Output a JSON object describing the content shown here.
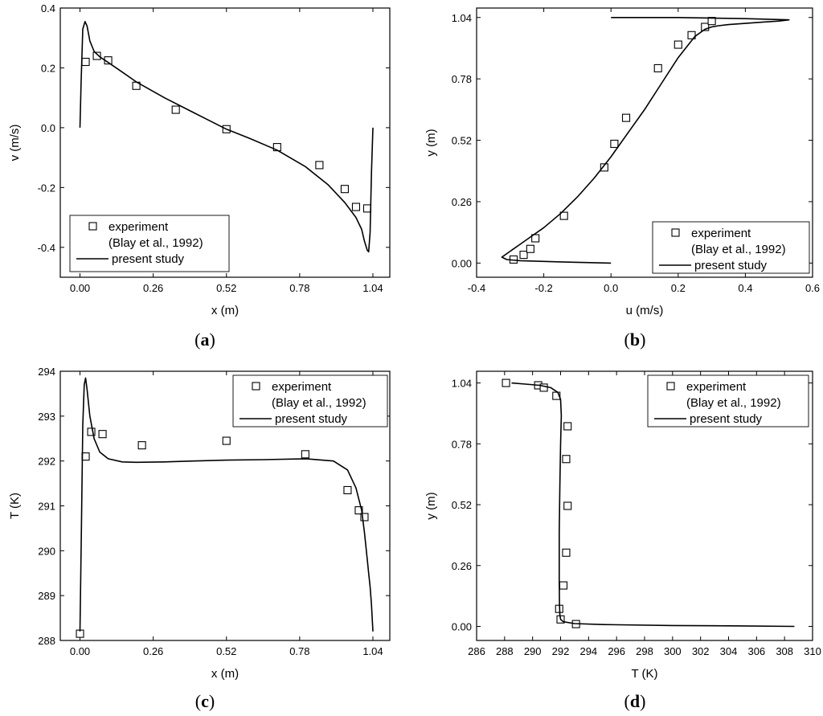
{
  "chart_data": [
    {
      "panel": "a",
      "type": "line",
      "xlabel": "x (m)",
      "ylabel": "v (m/s)",
      "xlim": [
        -0.07,
        1.1
      ],
      "ylim": [
        -0.5,
        0.4
      ],
      "xticks": [
        0.0,
        0.26,
        0.52,
        0.78,
        1.04
      ],
      "xtick_labels": [
        "0.00",
        "0.26",
        "0.52",
        "0.78",
        "1.04"
      ],
      "yticks": [
        -0.4,
        -0.2,
        0.0,
        0.2,
        0.4
      ],
      "ytick_labels": [
        "-0.4",
        "-0.2",
        "0.0",
        "0.2",
        "0.4"
      ],
      "legend_position": "bottom-left",
      "series": [
        {
          "name": "experiment",
          "name_line2": "(Blay et al., 1992)",
          "kind": "markers",
          "x": [
            0.02,
            0.06,
            0.1,
            0.2,
            0.34,
            0.52,
            0.7,
            0.85,
            0.94,
            0.98,
            1.02
          ],
          "y": [
            0.22,
            0.24,
            0.225,
            0.14,
            0.06,
            -0.005,
            -0.065,
            -0.125,
            -0.205,
            -0.265,
            -0.27
          ]
        },
        {
          "name": "present study",
          "kind": "line",
          "x": [
            0.0,
            0.004,
            0.01,
            0.018,
            0.025,
            0.035,
            0.05,
            0.07,
            0.1,
            0.15,
            0.2,
            0.3,
            0.4,
            0.52,
            0.6,
            0.7,
            0.8,
            0.88,
            0.94,
            0.98,
            1.0,
            1.01,
            1.02,
            1.025,
            1.03,
            1.035,
            1.04
          ],
          "y": [
            0.0,
            0.15,
            0.33,
            0.355,
            0.34,
            0.29,
            0.255,
            0.237,
            0.218,
            0.186,
            0.153,
            0.1,
            0.052,
            -0.005,
            -0.035,
            -0.075,
            -0.13,
            -0.19,
            -0.25,
            -0.3,
            -0.34,
            -0.38,
            -0.41,
            -0.415,
            -0.35,
            -0.15,
            0.0
          ]
        }
      ]
    },
    {
      "panel": "b",
      "type": "line",
      "xlabel": "u (m/s)",
      "ylabel": "y (m)",
      "xlim": [
        -0.4,
        0.6
      ],
      "ylim": [
        -0.06,
        1.08
      ],
      "xticks": [
        -0.4,
        -0.2,
        0.0,
        0.2,
        0.4,
        0.6
      ],
      "xtick_labels": [
        "-0.4",
        "-0.2",
        "0.0",
        "0.2",
        "0.4",
        "0.6"
      ],
      "yticks": [
        0.0,
        0.26,
        0.52,
        0.78,
        1.04
      ],
      "ytick_labels": [
        "0.00",
        "0.26",
        "0.52",
        "0.78",
        "1.04"
      ],
      "legend_position": "bottom-right",
      "series": [
        {
          "name": "experiment",
          "name_line2": "(Blay et al., 1992)",
          "kind": "markers",
          "x": [
            -0.29,
            -0.26,
            -0.24,
            -0.225,
            -0.14,
            -0.02,
            0.01,
            0.045,
            0.14,
            0.2,
            0.24,
            0.28,
            0.3
          ],
          "y": [
            0.015,
            0.035,
            0.06,
            0.105,
            0.2,
            0.405,
            0.505,
            0.615,
            0.825,
            0.925,
            0.965,
            1.0,
            1.025
          ]
        },
        {
          "name": "present study",
          "kind": "line",
          "x": [
            0.0,
            -0.15,
            -0.27,
            -0.31,
            -0.325,
            -0.31,
            -0.29,
            -0.27,
            -0.24,
            -0.2,
            -0.15,
            -0.1,
            -0.05,
            0.0,
            0.05,
            0.1,
            0.15,
            0.2,
            0.25,
            0.28,
            0.3,
            0.32,
            0.35,
            0.4,
            0.45,
            0.5,
            0.53,
            0.4,
            0.2,
            0.0
          ],
          "y": [
            0.0,
            0.005,
            0.01,
            0.015,
            0.025,
            0.04,
            0.06,
            0.08,
            0.11,
            0.15,
            0.21,
            0.28,
            0.36,
            0.45,
            0.55,
            0.65,
            0.76,
            0.87,
            0.96,
            0.99,
            1.0,
            1.005,
            1.01,
            1.015,
            1.02,
            1.025,
            1.03,
            1.035,
            1.04,
            1.04
          ]
        }
      ]
    },
    {
      "panel": "c",
      "type": "line",
      "xlabel": "x (m)",
      "ylabel": "T (K)",
      "xlim": [
        -0.07,
        1.1
      ],
      "ylim": [
        288,
        294
      ],
      "xticks": [
        0.0,
        0.26,
        0.52,
        0.78,
        1.04
      ],
      "xtick_labels": [
        "0.00",
        "0.26",
        "0.52",
        "0.78",
        "1.04"
      ],
      "yticks": [
        288,
        289,
        290,
        291,
        292,
        293,
        294
      ],
      "ytick_labels": [
        "288",
        "289",
        "290",
        "291",
        "292",
        "293",
        "294"
      ],
      "legend_position": "top-right",
      "series": [
        {
          "name": "experiment",
          "name_line2": "(Blay et al., 1992)",
          "kind": "markers",
          "x": [
            0.0,
            0.02,
            0.04,
            0.08,
            0.22,
            0.52,
            0.8,
            0.95,
            0.99,
            1.01
          ],
          "y": [
            288.15,
            292.1,
            292.65,
            292.6,
            292.35,
            292.45,
            292.15,
            291.35,
            290.9,
            290.75
          ]
        },
        {
          "name": "present study",
          "kind": "line",
          "x": [
            0.0,
            0.005,
            0.01,
            0.015,
            0.02,
            0.025,
            0.035,
            0.05,
            0.07,
            0.1,
            0.15,
            0.2,
            0.3,
            0.4,
            0.52,
            0.65,
            0.8,
            0.9,
            0.95,
            0.98,
            1.0,
            1.01,
            1.02,
            1.025,
            1.03,
            1.035,
            1.04
          ],
          "y": [
            288.2,
            290.5,
            292.8,
            293.7,
            293.85,
            293.6,
            293.0,
            292.5,
            292.2,
            292.05,
            291.98,
            291.97,
            291.98,
            292.0,
            292.02,
            292.03,
            292.05,
            292.0,
            291.8,
            291.4,
            290.9,
            290.4,
            289.8,
            289.5,
            289.2,
            288.8,
            288.2
          ]
        }
      ]
    },
    {
      "panel": "d",
      "type": "line",
      "xlabel": "T (K)",
      "ylabel": "y (m)",
      "xlim": [
        286,
        310
      ],
      "ylim": [
        -0.06,
        1.09
      ],
      "xticks": [
        286,
        288,
        290,
        292,
        294,
        296,
        298,
        300,
        302,
        304,
        306,
        308,
        310
      ],
      "xtick_labels": [
        "286",
        "288",
        "290",
        "292",
        "294",
        "296",
        "298",
        "300",
        "302",
        "304",
        "306",
        "308",
        "310"
      ],
      "yticks": [
        0.0,
        0.26,
        0.52,
        0.78,
        1.04
      ],
      "ytick_labels": [
        "0.00",
        "0.26",
        "0.52",
        "0.78",
        "1.04"
      ],
      "legend_position": "top-right",
      "series": [
        {
          "name": "experiment",
          "name_line2": "(Blay et al., 1992)",
          "kind": "markers",
          "x": [
            288.1,
            290.4,
            290.8,
            291.7,
            292.5,
            292.4,
            292.5,
            292.4,
            292.2,
            291.9,
            292.0,
            293.1
          ],
          "y": [
            1.04,
            1.03,
            1.02,
            0.985,
            0.855,
            0.715,
            0.515,
            0.315,
            0.175,
            0.075,
            0.03,
            0.01
          ]
        },
        {
          "name": "present study",
          "kind": "line",
          "x": [
            288.5,
            289.5,
            290.5,
            291.3,
            291.8,
            292.0,
            292.05,
            292.0,
            291.95,
            291.9,
            291.9,
            291.92,
            291.95,
            292.0,
            292.2,
            293.0,
            295.0,
            300.0,
            305.0,
            308.7
          ],
          "y": [
            1.04,
            1.035,
            1.03,
            1.02,
            1.0,
            0.97,
            0.9,
            0.78,
            0.6,
            0.4,
            0.2,
            0.1,
            0.05,
            0.03,
            0.02,
            0.012,
            0.008,
            0.004,
            0.002,
            0.0
          ]
        }
      ]
    }
  ]
}
